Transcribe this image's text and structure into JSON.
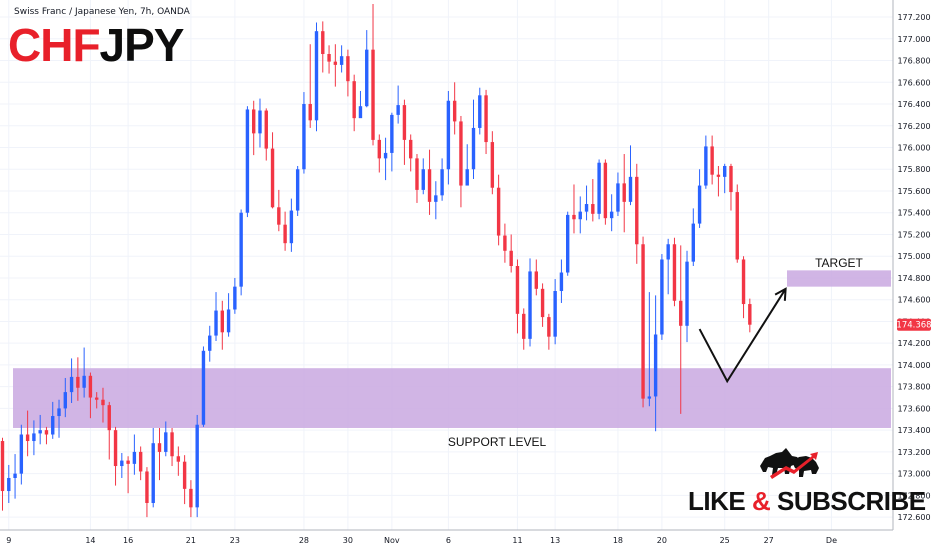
{
  "header": {
    "meta": "Swiss Franc / Japanese Yen, 7h, OANDA",
    "symbol_part1": "CHF",
    "symbol_part2": "JPY"
  },
  "colors": {
    "bull": "#2962ff",
    "bear": "#f23645",
    "zone": "#c9a8e0",
    "accent_red": "#e8202a"
  },
  "annotations": {
    "support_label": "SUPPORT LEVEL",
    "target_label": "TARGET",
    "current_price": "174.368",
    "cta_like": "LIKE",
    "cta_amp": "&",
    "cta_subscribe": "SUBSCRIBE",
    "logo_icon": "bull-bear-icon"
  },
  "chart_data": {
    "type": "candlestick",
    "ylim": [
      172.5,
      177.32
    ],
    "y_ticks": [
      "177.200",
      "177.000",
      "176.800",
      "176.600",
      "176.400",
      "176.200",
      "176.000",
      "175.800",
      "175.600",
      "175.400",
      "175.200",
      "175.000",
      "174.800",
      "174.600",
      "174.400",
      "174.200",
      "174.000",
      "173.800",
      "173.600",
      "173.400",
      "173.200",
      "173.000",
      "172.800",
      "172.600"
    ],
    "x_ticks": [
      {
        "label": "9",
        "index": 1
      },
      {
        "label": "14",
        "index": 14
      },
      {
        "label": "16",
        "index": 20
      },
      {
        "label": "21",
        "index": 30
      },
      {
        "label": "23",
        "index": 37
      },
      {
        "label": "28",
        "index": 48
      },
      {
        "label": "30",
        "index": 55
      },
      {
        "label": "Nov",
        "index": 62
      },
      {
        "label": "6",
        "index": 71
      },
      {
        "label": "11",
        "index": 82
      },
      {
        "label": "13",
        "index": 88
      },
      {
        "label": "18",
        "index": 98
      },
      {
        "label": "20",
        "index": 105
      },
      {
        "label": "25",
        "index": 115
      },
      {
        "label": "27",
        "index": 122
      },
      {
        "label": "De",
        "index": 132
      }
    ],
    "support_zone": [
      173.42,
      173.97
    ],
    "target_zone": [
      174.72,
      174.87
    ],
    "projection": [
      {
        "index": 111.0,
        "price": 174.33
      },
      {
        "index": 115.4,
        "price": 173.85
      },
      {
        "index": 124.7,
        "price": 174.7
      }
    ],
    "candles": [
      [
        173.3,
        172.84,
        173.33,
        172.66
      ],
      [
        172.84,
        172.96,
        173.08,
        172.73
      ],
      [
        172.96,
        173.0,
        173.18,
        172.77
      ],
      [
        173.0,
        173.36,
        173.45,
        172.9
      ],
      [
        173.36,
        173.3,
        173.58,
        173.16
      ],
      [
        173.3,
        173.37,
        173.49,
        173.17
      ],
      [
        173.37,
        173.4,
        173.54,
        173.27
      ],
      [
        173.4,
        173.36,
        173.43,
        173.27
      ],
      [
        173.36,
        173.53,
        173.66,
        173.32
      ],
      [
        173.53,
        173.6,
        173.68,
        173.33
      ],
      [
        173.6,
        173.75,
        173.88,
        173.52
      ],
      [
        173.75,
        173.89,
        174.06,
        173.65
      ],
      [
        173.89,
        173.79,
        174.07,
        173.67
      ],
      [
        173.79,
        173.9,
        174.16,
        173.7
      ],
      [
        173.9,
        173.7,
        173.93,
        173.51
      ],
      [
        173.7,
        173.68,
        173.75,
        173.6
      ],
      [
        173.68,
        173.63,
        173.79,
        173.47
      ],
      [
        173.63,
        173.4,
        173.66,
        173.13
      ],
      [
        173.4,
        173.07,
        173.43,
        172.89
      ],
      [
        173.07,
        173.12,
        173.19,
        172.96
      ],
      [
        173.12,
        173.09,
        173.16,
        172.82
      ],
      [
        173.09,
        173.2,
        173.36,
        172.99
      ],
      [
        173.2,
        173.02,
        173.25,
        172.94
      ],
      [
        173.02,
        172.73,
        173.06,
        172.6
      ],
      [
        172.73,
        173.28,
        173.42,
        172.69
      ],
      [
        173.28,
        173.2,
        173.42,
        172.94
      ],
      [
        173.2,
        173.38,
        173.48,
        173.16
      ],
      [
        173.38,
        173.16,
        173.42,
        173.07
      ],
      [
        173.16,
        173.11,
        173.25,
        172.98
      ],
      [
        173.11,
        172.86,
        173.17,
        172.72
      ],
      [
        172.86,
        172.69,
        172.94,
        172.6
      ],
      [
        172.69,
        173.45,
        173.54,
        172.6
      ],
      [
        173.45,
        174.13,
        174.17,
        173.43
      ],
      [
        174.13,
        174.27,
        174.36,
        174.03
      ],
      [
        174.27,
        174.5,
        174.67,
        174.22
      ],
      [
        174.5,
        174.3,
        174.59,
        174.14
      ],
      [
        174.3,
        174.51,
        174.66,
        174.26
      ],
      [
        174.51,
        174.72,
        174.8,
        174.47
      ],
      [
        174.72,
        175.4,
        175.43,
        174.64
      ],
      [
        175.4,
        176.35,
        176.38,
        175.36
      ],
      [
        176.35,
        176.13,
        176.43,
        175.93
      ],
      [
        176.13,
        176.34,
        176.45,
        176.0
      ],
      [
        176.34,
        175.99,
        176.36,
        175.88
      ],
      [
        175.99,
        175.45,
        176.14,
        175.44
      ],
      [
        175.45,
        175.29,
        175.61,
        175.23
      ],
      [
        175.29,
        175.12,
        175.41,
        175.05
      ],
      [
        175.12,
        175.42,
        175.53,
        175.04
      ],
      [
        175.42,
        175.8,
        175.83,
        175.37
      ],
      [
        175.8,
        176.4,
        176.51,
        175.76
      ],
      [
        176.4,
        176.25,
        176.95,
        176.18
      ],
      [
        176.25,
        177.07,
        177.15,
        176.15
      ],
      [
        177.07,
        176.86,
        177.16,
        176.69
      ],
      [
        176.86,
        176.79,
        176.94,
        176.68
      ],
      [
        176.79,
        176.76,
        176.95,
        176.56
      ],
      [
        176.76,
        176.84,
        176.94,
        176.69
      ],
      [
        176.84,
        176.61,
        176.9,
        176.47
      ],
      [
        176.61,
        176.27,
        176.67,
        176.15
      ],
      [
        176.27,
        176.38,
        176.52,
        176.32
      ],
      [
        176.38,
        176.9,
        177.08,
        176.37
      ],
      [
        176.9,
        176.07,
        177.32,
        176.02
      ],
      [
        176.07,
        175.9,
        176.12,
        175.77
      ],
      [
        175.9,
        175.95,
        176.09,
        175.7
      ],
      [
        175.95,
        176.3,
        176.32,
        175.78
      ],
      [
        176.3,
        176.39,
        176.57,
        176.22
      ],
      [
        176.39,
        176.07,
        176.44,
        175.84
      ],
      [
        176.07,
        175.9,
        176.12,
        175.78
      ],
      [
        175.9,
        175.61,
        175.94,
        175.49
      ],
      [
        175.61,
        175.8,
        175.9,
        175.57
      ],
      [
        175.8,
        175.5,
        175.98,
        175.38
      ],
      [
        175.5,
        175.56,
        175.69,
        175.34
      ],
      [
        175.56,
        175.8,
        175.9,
        175.51
      ],
      [
        175.8,
        176.43,
        176.52,
        175.66
      ],
      [
        176.43,
        176.24,
        176.6,
        176.12
      ],
      [
        176.24,
        175.65,
        176.29,
        175.45
      ],
      [
        175.65,
        175.8,
        176.03,
        175.67
      ],
      [
        175.8,
        176.18,
        176.44,
        175.71
      ],
      [
        176.18,
        176.48,
        176.55,
        176.12
      ],
      [
        176.48,
        176.05,
        176.53,
        175.94
      ],
      [
        176.05,
        175.63,
        176.15,
        175.57
      ],
      [
        175.63,
        175.19,
        175.75,
        175.1
      ],
      [
        175.19,
        175.05,
        175.3,
        174.94
      ],
      [
        175.05,
        174.91,
        175.2,
        174.85
      ],
      [
        174.91,
        174.47,
        174.97,
        174.29
      ],
      [
        174.47,
        174.24,
        174.52,
        174.14
      ],
      [
        174.24,
        174.86,
        174.98,
        174.17
      ],
      [
        174.86,
        174.7,
        174.97,
        174.64
      ],
      [
        174.7,
        174.44,
        174.75,
        174.35
      ],
      [
        174.44,
        174.26,
        174.47,
        174.14
      ],
      [
        174.26,
        174.68,
        174.79,
        174.19
      ],
      [
        174.68,
        174.85,
        174.97,
        174.57
      ],
      [
        174.85,
        175.38,
        175.41,
        174.82
      ],
      [
        175.38,
        175.34,
        175.66,
        175.21
      ],
      [
        175.34,
        175.41,
        175.55,
        175.21
      ],
      [
        175.41,
        175.48,
        175.65,
        175.33
      ],
      [
        175.48,
        175.39,
        175.71,
        175.32
      ],
      [
        175.39,
        175.86,
        175.89,
        175.34
      ],
      [
        175.86,
        175.35,
        175.89,
        175.29
      ],
      [
        175.35,
        175.41,
        175.57,
        175.23
      ],
      [
        175.41,
        175.67,
        175.77,
        175.37
      ],
      [
        175.67,
        175.5,
        175.94,
        175.22
      ],
      [
        175.5,
        175.73,
        176.02,
        175.47
      ],
      [
        175.73,
        175.11,
        175.85,
        174.93
      ],
      [
        175.11,
        173.69,
        175.18,
        173.61
      ],
      [
        173.69,
        173.71,
        174.67,
        173.62
      ],
      [
        173.71,
        174.28,
        174.64,
        173.39
      ],
      [
        174.28,
        174.97,
        175.02,
        174.23
      ],
      [
        174.97,
        175.11,
        175.16,
        174.65
      ],
      [
        175.11,
        174.59,
        175.17,
        174.54
      ],
      [
        174.59,
        174.36,
        175.1,
        173.55
      ],
      [
        174.36,
        174.95,
        175.05,
        174.21
      ],
      [
        174.95,
        175.3,
        175.44,
        174.91
      ],
      [
        175.3,
        175.65,
        175.8,
        175.26
      ],
      [
        175.65,
        176.01,
        176.11,
        175.62
      ],
      [
        176.01,
        175.75,
        176.11,
        175.66
      ],
      [
        175.75,
        175.73,
        175.83,
        175.55
      ],
      [
        175.73,
        175.83,
        175.85,
        175.58
      ],
      [
        175.83,
        175.59,
        175.85,
        175.42
      ],
      [
        175.59,
        174.97,
        175.66,
        174.94
      ],
      [
        174.97,
        174.56,
        175.0,
        174.43
      ],
      [
        174.56,
        174.37,
        174.61,
        174.3
      ]
    ]
  }
}
